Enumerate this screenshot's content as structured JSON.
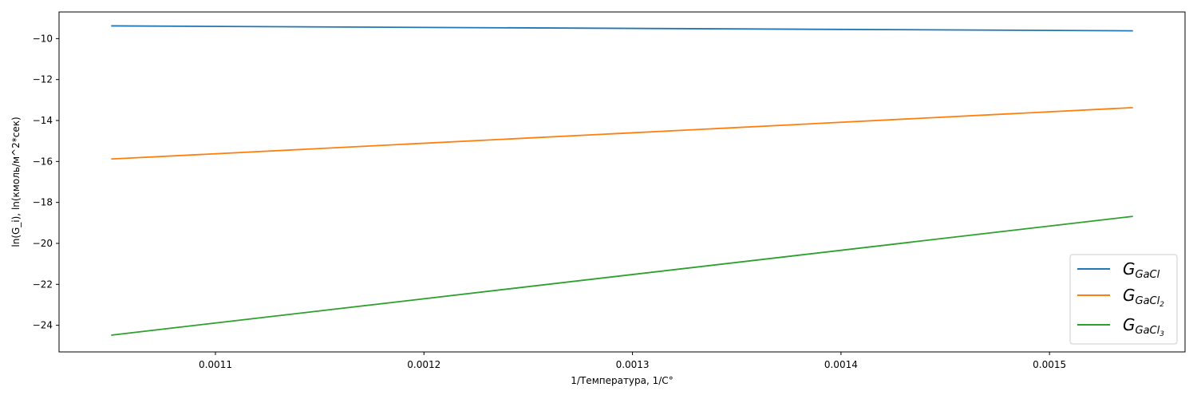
{
  "chart_data": {
    "type": "line",
    "xlabel": "1/Температура, 1/C°",
    "ylabel": "ln(G_i), ln(кмоль/м^2*сек)",
    "xlim": [
      0.001025,
      0.001565
    ],
    "ylim": [
      -25.3,
      -8.7
    ],
    "xticks": [
      0.0011,
      0.0012,
      0.0013,
      0.0014,
      0.0015
    ],
    "xtick_labels": [
      "0.0011",
      "0.0012",
      "0.0013",
      "0.0014",
      "0.0015"
    ],
    "yticks": [
      -24,
      -22,
      -20,
      -18,
      -16,
      -14,
      -12,
      -10
    ],
    "ytick_labels": [
      "−24",
      "−22",
      "−20",
      "−18",
      "−16",
      "−14",
      "−12",
      "−10"
    ],
    "grid": false,
    "legend_position": "lower-right",
    "series": [
      {
        "key": "gacl",
        "name": "G_GaCl",
        "legend_main": "G",
        "legend_sub": "GaCl",
        "legend_subsub": "",
        "color": "#1f77b4",
        "x": [
          0.00105,
          0.00154
        ],
        "y": [
          -9.38,
          -9.62
        ]
      },
      {
        "key": "gacl2",
        "name": "G_GaCl2",
        "legend_main": "G",
        "legend_sub": "GaCl",
        "legend_subsub": "2",
        "color": "#ff7f0e",
        "x": [
          0.00105,
          0.00154
        ],
        "y": [
          -15.88,
          -13.37
        ]
      },
      {
        "key": "gacl3",
        "name": "G_GaCl3",
        "legend_main": "G",
        "legend_sub": "GaCl",
        "legend_subsub": "3",
        "color": "#2ca02c",
        "x": [
          0.00105,
          0.00154
        ],
        "y": [
          -24.48,
          -18.68
        ]
      }
    ]
  }
}
